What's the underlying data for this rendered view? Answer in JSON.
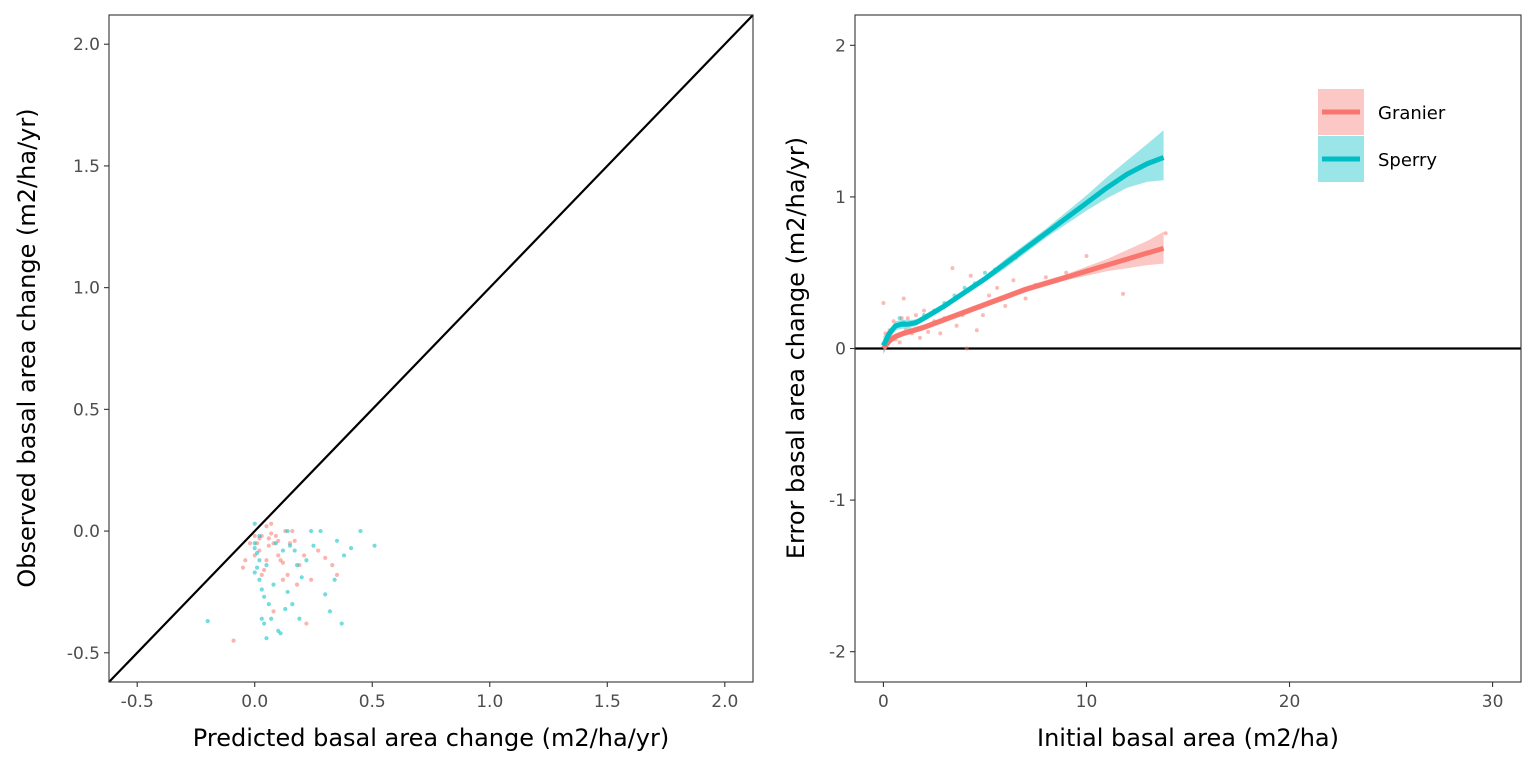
{
  "colors": {
    "granier": "#F8766D",
    "sperry": "#00BFC4",
    "ref_line": "#000000"
  },
  "chart_data": [
    {
      "type": "scatter",
      "xlabel": "Predicted basal area change (m2/ha/yr)",
      "ylabel": "Observed basal area change (m2/ha/yr)",
      "xlim": [
        -0.62,
        2.12
      ],
      "ylim": [
        -0.62,
        2.12
      ],
      "x_ticks": [
        -0.5,
        0.0,
        0.5,
        1.0,
        1.5,
        2.0
      ],
      "x_tick_labels": [
        "-0.5",
        "0.0",
        "0.5",
        "1.0",
        "1.5",
        "2.0"
      ],
      "y_ticks": [
        -0.5,
        0.0,
        0.5,
        1.0,
        1.5,
        2.0
      ],
      "y_tick_labels": [
        "-0.5",
        "0.0",
        "0.5",
        "1.0",
        "1.5",
        "2.0"
      ],
      "grid": false,
      "reference_line": "identity (y = x)",
      "series": [
        {
          "color_key": "granier",
          "points": [
            [
              -0.09,
              -0.45
            ],
            [
              -0.05,
              -0.15
            ],
            [
              -0.04,
              -0.12
            ],
            [
              -0.02,
              -0.05
            ],
            [
              0.0,
              -0.02
            ],
            [
              0.01,
              -0.05
            ],
            [
              0.02,
              -0.03
            ],
            [
              0.02,
              -0.08
            ],
            [
              0.03,
              -0.18
            ],
            [
              0.04,
              -0.16
            ],
            [
              0.05,
              0.02
            ],
            [
              0.06,
              -0.03
            ],
            [
              0.06,
              -0.06
            ],
            [
              0.07,
              0.03
            ],
            [
              0.07,
              -0.01
            ],
            [
              0.08,
              -0.05
            ],
            [
              0.09,
              -0.02
            ],
            [
              0.1,
              -0.04
            ],
            [
              0.1,
              -0.1
            ],
            [
              0.11,
              -0.12
            ],
            [
              0.12,
              -0.2
            ],
            [
              0.13,
              0.0
            ],
            [
              0.14,
              -0.18
            ],
            [
              0.15,
              -0.05
            ],
            [
              0.16,
              0.0
            ],
            [
              0.17,
              -0.04
            ],
            [
              0.19,
              -0.14
            ],
            [
              0.21,
              -0.1
            ],
            [
              0.22,
              -0.38
            ],
            [
              0.24,
              -0.2
            ],
            [
              0.27,
              -0.08
            ],
            [
              0.3,
              -0.11
            ],
            [
              0.33,
              -0.14
            ],
            [
              0.35,
              -0.18
            ],
            [
              0.12,
              -0.13
            ],
            [
              0.08,
              -0.33
            ],
            [
              0.0,
              -0.1
            ],
            [
              0.03,
              -0.02
            ],
            [
              0.05,
              -0.12
            ],
            [
              0.18,
              -0.22
            ]
          ]
        },
        {
          "color_key": "sperry",
          "points": [
            [
              -0.2,
              -0.37
            ],
            [
              0.0,
              0.03
            ],
            [
              0.0,
              -0.05
            ],
            [
              0.0,
              -0.07
            ],
            [
              0.01,
              -0.09
            ],
            [
              0.01,
              -0.15
            ],
            [
              0.02,
              -0.12
            ],
            [
              0.02,
              -0.2
            ],
            [
              0.03,
              -0.24
            ],
            [
              0.03,
              -0.36
            ],
            [
              0.04,
              -0.38
            ],
            [
              0.04,
              -0.27
            ],
            [
              0.05,
              -0.44
            ],
            [
              0.06,
              -0.3
            ],
            [
              0.07,
              -0.36
            ],
            [
              0.08,
              -0.22
            ],
            [
              0.1,
              -0.41
            ],
            [
              0.11,
              -0.42
            ],
            [
              0.12,
              -0.08
            ],
            [
              0.13,
              -0.32
            ],
            [
              0.14,
              -0.0
            ],
            [
              0.15,
              -0.06
            ],
            [
              0.16,
              -0.3
            ],
            [
              0.17,
              -0.08
            ],
            [
              0.18,
              -0.14
            ],
            [
              0.19,
              -0.36
            ],
            [
              0.2,
              -0.19
            ],
            [
              0.22,
              -0.12
            ],
            [
              0.24,
              0.0
            ],
            [
              0.25,
              -0.06
            ],
            [
              0.28,
              0.0
            ],
            [
              0.3,
              -0.26
            ],
            [
              0.32,
              -0.33
            ],
            [
              0.34,
              -0.2
            ],
            [
              0.35,
              -0.04
            ],
            [
              0.37,
              -0.38
            ],
            [
              0.38,
              -0.1
            ],
            [
              0.41,
              -0.07
            ],
            [
              0.45,
              0.0
            ],
            [
              0.51,
              -0.06
            ],
            [
              0.0,
              -0.17
            ],
            [
              0.02,
              -0.02
            ],
            [
              0.05,
              -0.14
            ],
            [
              0.09,
              -0.05
            ],
            [
              0.14,
              -0.25
            ]
          ]
        }
      ]
    },
    {
      "type": "line",
      "xlabel": "Initial basal area (m2/ha)",
      "ylabel": "Error basal area change (m2/ha/yr)",
      "xlim": [
        -1.4,
        31.4
      ],
      "ylim": [
        -2.2,
        2.2
      ],
      "x_ticks": [
        0,
        10,
        20,
        30
      ],
      "x_tick_labels": [
        "0",
        "10",
        "20",
        "30"
      ],
      "y_ticks": [
        -2,
        -1,
        0,
        1,
        2
      ],
      "y_tick_labels": [
        "-2",
        "-1",
        "0",
        "1",
        "2"
      ],
      "grid": false,
      "reference_line": "horizontal at y = 0",
      "legend": {
        "position": "top-right",
        "entries": [
          "Granier",
          "Sperry"
        ]
      },
      "series": [
        {
          "name": "Granier",
          "color_key": "granier",
          "x": [
            0.0,
            0.3,
            0.6,
            1.0,
            1.5,
            2.0,
            3.0,
            4.0,
            5.0,
            6.0,
            7.0,
            8.0,
            9.0,
            10.0,
            11.0,
            12.0,
            13.0,
            13.8
          ],
          "y": [
            0.0,
            0.05,
            0.08,
            0.1,
            0.12,
            0.14,
            0.19,
            0.24,
            0.29,
            0.34,
            0.39,
            0.43,
            0.47,
            0.51,
            0.55,
            0.59,
            0.63,
            0.66
          ],
          "ci_lower": [
            -0.03,
            0.03,
            0.06,
            0.08,
            0.1,
            0.12,
            0.17,
            0.22,
            0.27,
            0.32,
            0.37,
            0.41,
            0.45,
            0.48,
            0.51,
            0.53,
            0.55,
            0.56
          ],
          "ci_upper": [
            0.03,
            0.07,
            0.1,
            0.12,
            0.14,
            0.16,
            0.21,
            0.26,
            0.31,
            0.36,
            0.41,
            0.45,
            0.49,
            0.54,
            0.59,
            0.65,
            0.71,
            0.77
          ],
          "points": [
            [
              0.0,
              0.3
            ],
            [
              0.1,
              0.1
            ],
            [
              0.2,
              0.05
            ],
            [
              0.3,
              0.12
            ],
            [
              0.4,
              0.08
            ],
            [
              0.5,
              0.18
            ],
            [
              0.6,
              0.06
            ],
            [
              0.7,
              0.15
            ],
            [
              0.8,
              0.04
            ],
            [
              0.9,
              0.2
            ],
            [
              1.0,
              0.33
            ],
            [
              1.1,
              0.12
            ],
            [
              1.2,
              0.2
            ],
            [
              1.4,
              0.1
            ],
            [
              1.6,
              0.22
            ],
            [
              1.8,
              0.07
            ],
            [
              2.0,
              0.25
            ],
            [
              2.2,
              0.11
            ],
            [
              2.5,
              0.18
            ],
            [
              2.8,
              0.1
            ],
            [
              3.0,
              0.2
            ],
            [
              3.2,
              0.3
            ],
            [
              3.4,
              0.53
            ],
            [
              3.6,
              0.15
            ],
            [
              3.9,
              0.22
            ],
            [
              4.1,
              0.0
            ],
            [
              4.3,
              0.48
            ],
            [
              4.6,
              0.12
            ],
            [
              4.9,
              0.22
            ],
            [
              5.2,
              0.35
            ],
            [
              5.6,
              0.4
            ],
            [
              6.0,
              0.28
            ],
            [
              6.4,
              0.45
            ],
            [
              7.0,
              0.33
            ],
            [
              7.5,
              0.42
            ],
            [
              8.0,
              0.47
            ],
            [
              9.0,
              0.5
            ],
            [
              10.0,
              0.61
            ],
            [
              11.8,
              0.36
            ],
            [
              13.9,
              0.76
            ]
          ]
        },
        {
          "name": "Sperry",
          "color_key": "sperry",
          "x": [
            0.0,
            0.3,
            0.6,
            0.9,
            1.2,
            1.6,
            2.0,
            3.0,
            4.0,
            5.0,
            6.0,
            7.0,
            8.0,
            9.0,
            10.0,
            11.0,
            12.0,
            13.0,
            13.8
          ],
          "y": [
            0.02,
            0.1,
            0.15,
            0.16,
            0.16,
            0.17,
            0.2,
            0.28,
            0.37,
            0.46,
            0.56,
            0.66,
            0.76,
            0.86,
            0.96,
            1.06,
            1.15,
            1.22,
            1.26
          ],
          "ci_lower": [
            -0.04,
            0.07,
            0.12,
            0.13,
            0.13,
            0.15,
            0.18,
            0.26,
            0.35,
            0.44,
            0.53,
            0.63,
            0.73,
            0.82,
            0.91,
            0.99,
            1.06,
            1.1,
            1.11
          ],
          "ci_upper": [
            0.08,
            0.13,
            0.18,
            0.19,
            0.19,
            0.19,
            0.22,
            0.3,
            0.39,
            0.48,
            0.59,
            0.69,
            0.79,
            0.9,
            1.01,
            1.13,
            1.24,
            1.35,
            1.44
          ],
          "points": [
            [
              0.0,
              0.03
            ],
            [
              0.2,
              0.07
            ],
            [
              0.4,
              0.12
            ],
            [
              0.6,
              0.15
            ],
            [
              0.8,
              0.2
            ],
            [
              1.0,
              0.17
            ],
            [
              1.3,
              0.12
            ],
            [
              1.6,
              0.18
            ],
            [
              2.0,
              0.22
            ],
            [
              2.5,
              0.25
            ],
            [
              3.0,
              0.3
            ],
            [
              3.5,
              0.35
            ],
            [
              4.0,
              0.4
            ],
            [
              4.5,
              0.43
            ],
            [
              5.0,
              0.5
            ],
            [
              5.5,
              0.52
            ],
            [
              6.0,
              0.56
            ],
            [
              6.5,
              0.6
            ]
          ]
        }
      ]
    }
  ]
}
